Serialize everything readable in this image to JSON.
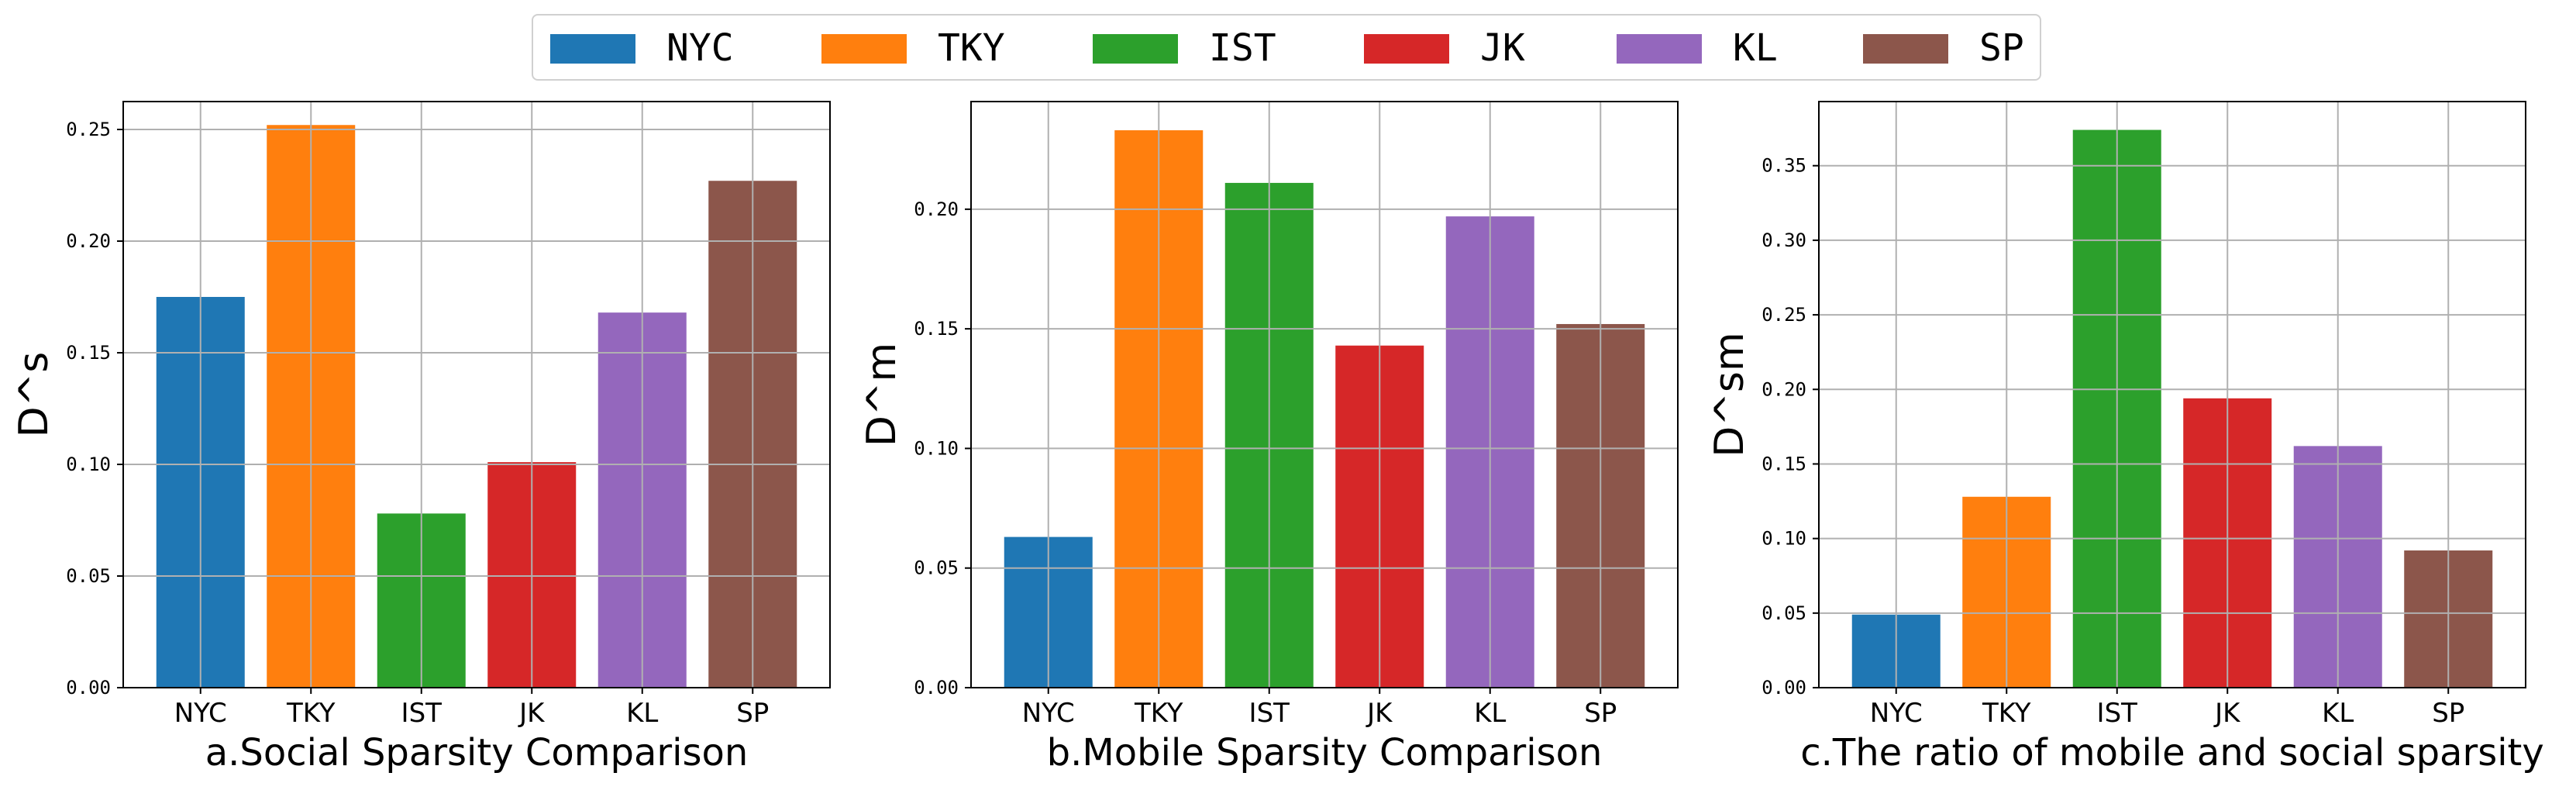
{
  "legend": {
    "items": [
      {
        "label": "NYC",
        "color": "#1f77b4"
      },
      {
        "label": "TKY",
        "color": "#ff7f0e"
      },
      {
        "label": "IST",
        "color": "#2ca02c"
      },
      {
        "label": "JK",
        "color": "#d62728"
      },
      {
        "label": "KL",
        "color": "#9467bd"
      },
      {
        "label": "SP",
        "color": "#8c564b"
      }
    ]
  },
  "chart_data": [
    {
      "type": "bar",
      "title": "a.Social Sparsity Comparison",
      "xlabel": "a.Social Sparsity Comparison",
      "ylabel": "D^s",
      "categories": [
        "NYC",
        "TKY",
        "IST",
        "JK",
        "KL",
        "SP"
      ],
      "values": [
        0.175,
        0.252,
        0.078,
        0.101,
        0.168,
        0.227
      ],
      "colors": [
        "#1f77b4",
        "#ff7f0e",
        "#2ca02c",
        "#d62728",
        "#9467bd",
        "#8c564b"
      ],
      "ylim": [
        0,
        0.2625
      ],
      "yticks": [
        "0.00",
        "0.05",
        "0.10",
        "0.15",
        "0.20",
        "0.25"
      ],
      "grid": true
    },
    {
      "type": "bar",
      "title": "b.Mobile Sparsity Comparison",
      "xlabel": "b.Mobile Sparsity Comparison",
      "ylabel": "D^m",
      "categories": [
        "NYC",
        "TKY",
        "IST",
        "JK",
        "KL",
        "SP"
      ],
      "values": [
        0.063,
        0.233,
        0.211,
        0.143,
        0.197,
        0.152
      ],
      "colors": [
        "#1f77b4",
        "#ff7f0e",
        "#2ca02c",
        "#d62728",
        "#9467bd",
        "#8c564b"
      ],
      "ylim": [
        0,
        0.245
      ],
      "yticks": [
        "0.00",
        "0.05",
        "0.10",
        "0.15",
        "0.20"
      ],
      "grid": true
    },
    {
      "type": "bar",
      "title": "c.The ratio of mobile and social sparsity",
      "xlabel": "c.The ratio of mobile and social sparsity",
      "ylabel": "D^sm",
      "categories": [
        "NYC",
        "TKY",
        "IST",
        "JK",
        "KL",
        "SP"
      ],
      "values": [
        0.049,
        0.128,
        0.374,
        0.194,
        0.162,
        0.092
      ],
      "colors": [
        "#1f77b4",
        "#ff7f0e",
        "#2ca02c",
        "#d62728",
        "#9467bd",
        "#8c564b"
      ],
      "ylim": [
        0,
        0.393
      ],
      "yticks": [
        "0.00",
        "0.05",
        "0.10",
        "0.15",
        "0.20",
        "0.25",
        "0.30",
        "0.35"
      ],
      "grid": true
    }
  ]
}
